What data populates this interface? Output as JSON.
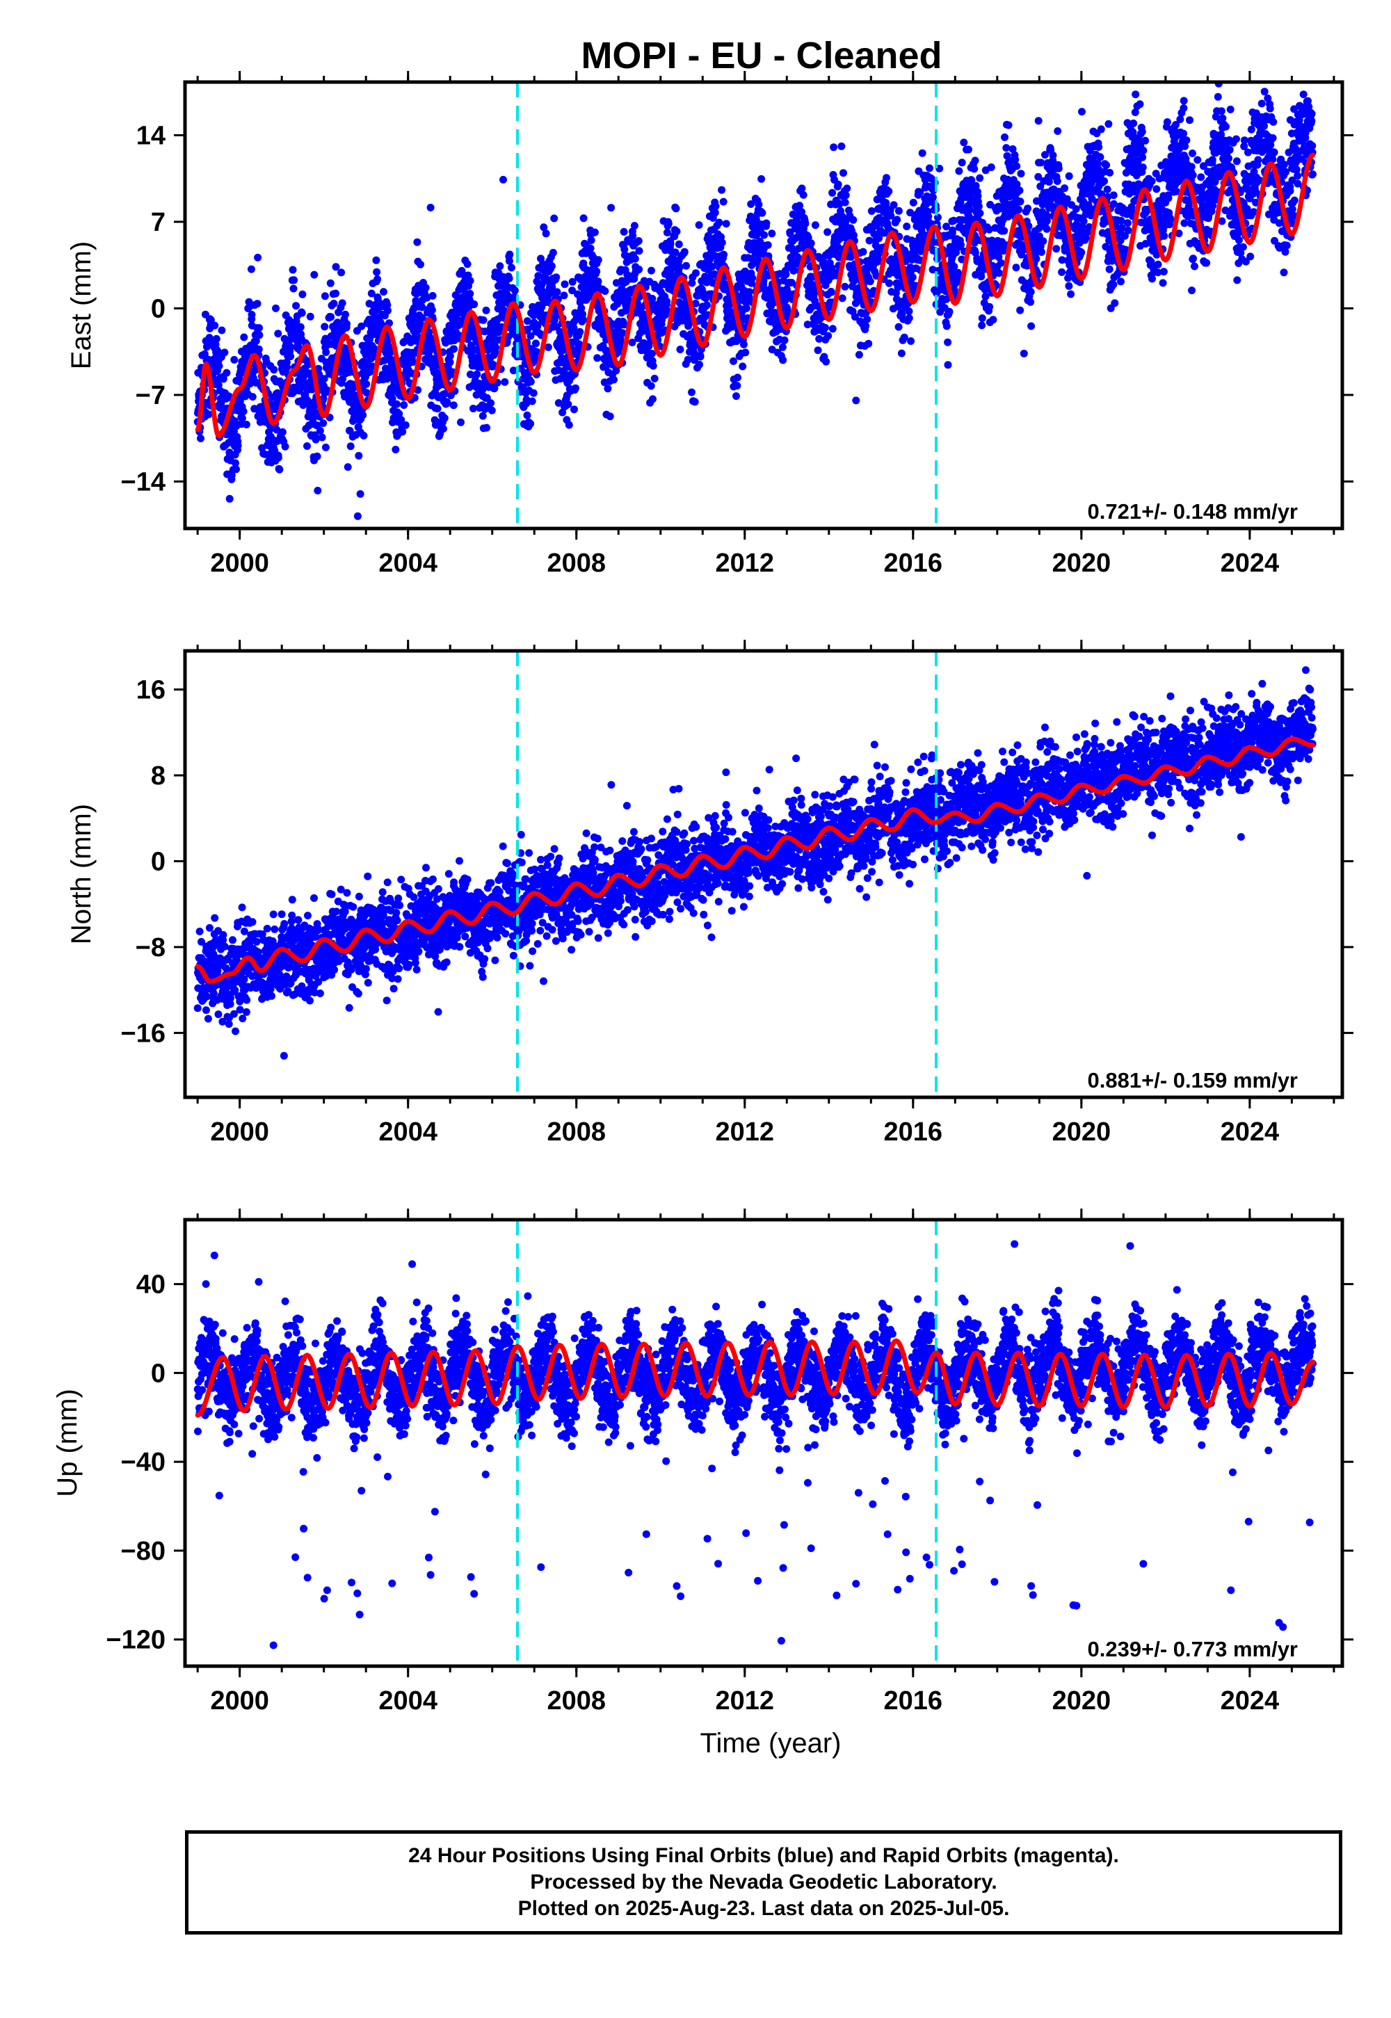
{
  "title": "MOPI  - EU - Cleaned",
  "colors": {
    "points": "#0000ff",
    "model": "#ff0000",
    "offset_lines": "#00e5e5",
    "frame": "#000000"
  },
  "footer": {
    "line1": "24 Hour Positions Using Final Orbits (blue) and Rapid Orbits (magenta).",
    "line2": "Processed by the Nevada Geodetic Laboratory.",
    "line3": "Plotted on 2025-Aug-23. Last data on 2025-Jul-05."
  },
  "chart_data": [
    {
      "type": "scatter",
      "ylabel": "East (mm)",
      "xlabel": "",
      "rate_text": "0.721+/- 0.148 mm/yr",
      "xlim": [
        1998.7,
        2026.2
      ],
      "ylim": [
        -17.8,
        18.3
      ],
      "xticks": [
        2000,
        2004,
        2008,
        2012,
        2016,
        2020,
        2024
      ],
      "yticks": [
        14,
        7,
        0,
        -7,
        -14
      ],
      "ytick_labels": [
        "14",
        "7",
        "0",
        "−7",
        "−14"
      ],
      "offset_lines": [
        2006.6,
        2016.55
      ],
      "series": [
        {
          "kind": "points",
          "start": 1999.0,
          "end": 2025.5,
          "y0": -7.5,
          "slope": 0.72,
          "annual_amp": 3.2,
          "scatter": 2.2
        },
        {
          "kind": "model",
          "points": [
            [
              1999.0,
              -9.8
            ],
            [
              1999.2,
              -4.5
            ],
            [
              1999.5,
              -10.3
            ],
            [
              2000.0,
              -6.5
            ],
            [
              2000.35,
              -3.8
            ],
            [
              2000.8,
              -9.3
            ],
            [
              2001.3,
              -5.0
            ],
            [
              2001.6,
              -3.0
            ],
            [
              2002.0,
              -8.7
            ],
            [
              2002.5,
              -2.2
            ],
            [
              2003.0,
              -8.0
            ],
            [
              2003.5,
              -1.5
            ],
            [
              2004.0,
              -7.3
            ],
            [
              2004.5,
              -0.9
            ],
            [
              2005.0,
              -6.6
            ],
            [
              2005.5,
              -0.3
            ],
            [
              2006.0,
              -5.9
            ],
            [
              2006.5,
              0.4
            ],
            [
              2007.0,
              -5.2
            ],
            [
              2007.5,
              0.6
            ],
            [
              2008.0,
              -5.0
            ],
            [
              2008.5,
              1.2
            ],
            [
              2009.0,
              -4.6
            ],
            [
              2009.5,
              1.8
            ],
            [
              2010.0,
              -3.8
            ],
            [
              2010.5,
              2.5
            ],
            [
              2011.0,
              -3.0
            ],
            [
              2011.5,
              3.3
            ],
            [
              2012.0,
              -2.3
            ],
            [
              2012.5,
              4.0
            ],
            [
              2013.0,
              -1.6
            ],
            [
              2013.5,
              4.7
            ],
            [
              2014.0,
              -0.9
            ],
            [
              2014.5,
              5.4
            ],
            [
              2015.0,
              -0.2
            ],
            [
              2015.5,
              6.1
            ],
            [
              2016.0,
              0.5
            ],
            [
              2016.5,
              6.6
            ],
            [
              2017.0,
              0.4
            ],
            [
              2017.5,
              6.9
            ],
            [
              2018.0,
              1.0
            ],
            [
              2018.5,
              7.5
            ],
            [
              2019.0,
              1.7
            ],
            [
              2019.5,
              8.2
            ],
            [
              2020.0,
              2.4
            ],
            [
              2020.5,
              8.9
            ],
            [
              2021.0,
              3.1
            ],
            [
              2021.5,
              9.6
            ],
            [
              2022.0,
              3.9
            ],
            [
              2022.5,
              10.3
            ],
            [
              2023.0,
              4.6
            ],
            [
              2023.5,
              11.0
            ],
            [
              2024.0,
              5.3
            ],
            [
              2024.5,
              11.7
            ],
            [
              2025.0,
              6.0
            ],
            [
              2025.5,
              12.4
            ]
          ]
        }
      ]
    },
    {
      "type": "scatter",
      "ylabel": "North (mm)",
      "xlabel": "",
      "rate_text": "0.881+/- 0.159 mm/yr",
      "xlim": [
        1998.7,
        2026.2
      ],
      "ylim": [
        -22.0,
        19.6
      ],
      "xticks": [
        2000,
        2004,
        2008,
        2012,
        2016,
        2020,
        2024
      ],
      "yticks": [
        16,
        8,
        0,
        -8,
        -16
      ],
      "ytick_labels": [
        "16",
        "8",
        "0",
        "−8",
        "−16"
      ],
      "offset_lines": [
        2006.6,
        2016.55
      ],
      "series": [
        {
          "kind": "points",
          "start": 1999.0,
          "end": 2025.5,
          "y0": -10.8,
          "slope": 0.86,
          "annual_amp": 0.8,
          "scatter": 1.9
        },
        {
          "kind": "model",
          "points": [
            [
              1999.0,
              -9.8
            ],
            [
              1999.3,
              -11.2
            ],
            [
              1999.8,
              -10.5
            ],
            [
              2000.2,
              -9.0
            ],
            [
              2000.5,
              -10.2
            ],
            [
              2001.0,
              -8.2
            ],
            [
              2001.5,
              -9.3
            ],
            [
              2002.0,
              -7.3
            ],
            [
              2002.5,
              -8.4
            ],
            [
              2003.0,
              -6.4
            ],
            [
              2003.5,
              -7.5
            ],
            [
              2004.0,
              -5.6
            ],
            [
              2004.5,
              -6.6
            ],
            [
              2005.0,
              -4.7
            ],
            [
              2005.5,
              -5.8
            ],
            [
              2006.0,
              -3.9
            ],
            [
              2006.5,
              -4.9
            ],
            [
              2007.0,
              -3.0
            ],
            [
              2007.5,
              -4.0
            ],
            [
              2008.0,
              -2.1
            ],
            [
              2008.5,
              -3.2
            ],
            [
              2009.0,
              -1.3
            ],
            [
              2009.5,
              -2.3
            ],
            [
              2010.0,
              -0.4
            ],
            [
              2010.5,
              -1.4
            ],
            [
              2011.0,
              0.5
            ],
            [
              2011.5,
              -0.6
            ],
            [
              2012.0,
              1.3
            ],
            [
              2012.5,
              0.3
            ],
            [
              2013.0,
              2.2
            ],
            [
              2013.5,
              1.2
            ],
            [
              2014.0,
              3.1
            ],
            [
              2014.5,
              2.0
            ],
            [
              2015.0,
              3.9
            ],
            [
              2015.5,
              2.9
            ],
            [
              2016.0,
              4.8
            ],
            [
              2016.5,
              3.6
            ],
            [
              2017.0,
              4.5
            ],
            [
              2017.5,
              3.7
            ],
            [
              2018.0,
              5.3
            ],
            [
              2018.5,
              4.6
            ],
            [
              2019.0,
              6.2
            ],
            [
              2019.5,
              5.5
            ],
            [
              2020.0,
              7.1
            ],
            [
              2020.5,
              6.4
            ],
            [
              2021.0,
              7.9
            ],
            [
              2021.5,
              7.3
            ],
            [
              2022.0,
              8.8
            ],
            [
              2022.5,
              8.1
            ],
            [
              2023.0,
              9.7
            ],
            [
              2023.5,
              9.0
            ],
            [
              2024.0,
              10.6
            ],
            [
              2024.5,
              9.9
            ],
            [
              2025.0,
              11.4
            ],
            [
              2025.5,
              10.8
            ]
          ]
        }
      ]
    },
    {
      "type": "scatter",
      "ylabel": "Up (mm)",
      "xlabel": "Time (year)",
      "rate_text": "0.239+/- 0.773 mm/yr",
      "xlim": [
        1998.7,
        2026.2
      ],
      "ylim": [
        -132.0,
        69.0
      ],
      "xticks": [
        2000,
        2004,
        2008,
        2012,
        2016,
        2020,
        2024
      ],
      "yticks": [
        40,
        0,
        -40,
        -80,
        -120
      ],
      "ytick_labels": [
        "40",
        "0",
        "−40",
        "−80",
        "−120"
      ],
      "offset_lines": [
        2006.6,
        2016.55
      ],
      "series": [
        {
          "kind": "points",
          "start": 1999.0,
          "end": 2025.5,
          "y0": -4.0,
          "slope": 0.24,
          "annual_amp": 12.0,
          "scatter": 9.0
        },
        {
          "kind": "model",
          "points": [
            [
              1999.0,
              -19.0
            ],
            [
              1999.6,
              7.0
            ],
            [
              2000.1,
              -17.0
            ],
            [
              2000.6,
              7.5
            ],
            [
              2001.1,
              -16.5
            ],
            [
              2001.6,
              8.0
            ],
            [
              2002.1,
              -16.0
            ],
            [
              2002.6,
              8.5
            ],
            [
              2003.1,
              -15.5
            ],
            [
              2003.6,
              9.0
            ],
            [
              2004.1,
              -15.0
            ],
            [
              2004.6,
              9.5
            ],
            [
              2005.1,
              -14.5
            ],
            [
              2005.6,
              10.0
            ],
            [
              2006.1,
              -14.0
            ],
            [
              2006.6,
              12.0
            ],
            [
              2007.1,
              -12.0
            ],
            [
              2007.6,
              12.5
            ],
            [
              2008.1,
              -11.5
            ],
            [
              2008.6,
              13.0
            ],
            [
              2009.1,
              -11.0
            ],
            [
              2009.6,
              13.0
            ],
            [
              2010.1,
              -10.5
            ],
            [
              2010.6,
              13.5
            ],
            [
              2011.1,
              -10.5
            ],
            [
              2011.6,
              13.5
            ],
            [
              2012.1,
              -10.0
            ],
            [
              2012.6,
              14.0
            ],
            [
              2013.1,
              -10.0
            ],
            [
              2013.6,
              14.0
            ],
            [
              2014.1,
              -9.5
            ],
            [
              2014.6,
              14.0
            ],
            [
              2015.1,
              -9.5
            ],
            [
              2015.6,
              14.5
            ],
            [
              2016.1,
              -9.0
            ],
            [
              2016.55,
              9.0
            ],
            [
              2017.0,
              -14.0
            ],
            [
              2017.5,
              9.0
            ],
            [
              2018.0,
              -14.5
            ],
            [
              2018.5,
              9.0
            ],
            [
              2019.0,
              -15.0
            ],
            [
              2019.5,
              8.5
            ],
            [
              2020.0,
              -15.0
            ],
            [
              2020.5,
              8.5
            ],
            [
              2021.0,
              -15.5
            ],
            [
              2021.5,
              8.0
            ],
            [
              2022.0,
              -15.5
            ],
            [
              2022.5,
              8.0
            ],
            [
              2023.0,
              -15.0
            ],
            [
              2023.5,
              8.5
            ],
            [
              2024.0,
              -15.0
            ],
            [
              2024.5,
              9.0
            ],
            [
              2025.0,
              -14.0
            ],
            [
              2025.5,
              5.0
            ]
          ]
        }
      ]
    }
  ]
}
